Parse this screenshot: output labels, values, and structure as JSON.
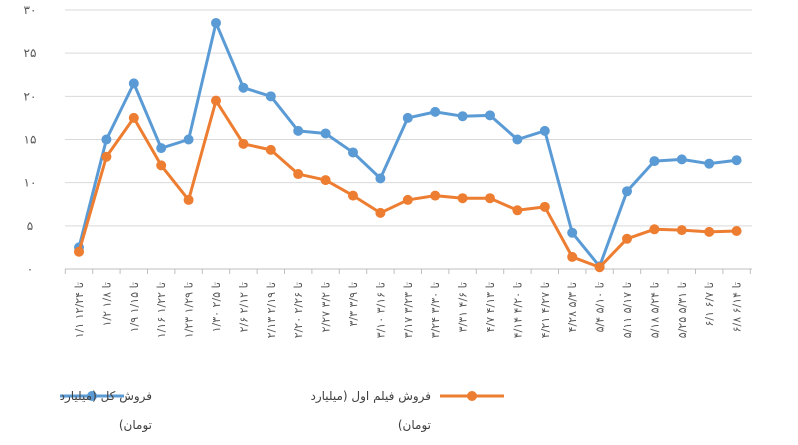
{
  "chart_data": {
    "type": "line",
    "title": "",
    "xlabel": "",
    "ylabel": "",
    "ylim": [
      0,
      30
    ],
    "y_ticks": [
      "۰",
      "۵",
      "۱۰",
      "۱۵",
      "۲۰",
      "۲۵",
      "۳۰"
    ],
    "grid": true,
    "legend_position": "bottom",
    "categories": [
      "۱/۱ تا ۱۲/۲۴",
      "۱/۲ تا ۱/۸",
      "۱/۹ تا ۱/۱۵",
      "۱/۱۶ تا ۱/۲۲",
      "۱/۲۳ تا ۱/۲۹",
      "۱/۳۰ تا ۲/۵",
      "۲/۶ تا ۲/۱۲",
      "۲/۱۳ تا ۲/۱۹",
      "۲/۲۰ تا ۲/۲۶",
      "۲/۲۷ تا ۳/۲",
      "۳/۳ تا ۳/۹",
      "۳/۱۰ تا ۳/۱۶",
      "۳/۱۷ تا ۳/۲۳",
      "۳/۲۴ تا ۳/۳۰",
      "۳/۳۱ تا ۴/۶",
      "۴/۷ تا ۴/۱۳",
      "۴/۱۴ تا ۴/۲۰",
      "۴/۲۱ تا ۴/۲۷",
      "۴/۲۸ تا ۵/۳",
      "۵/۴ تا ۵/۱۰",
      "۵/۱۱ تا ۵/۱۷",
      "۵/۱۸ تا ۵/۲۴",
      "۵/۲۵ تا ۵/۳۱",
      "۶/۱ تا ۶/۷",
      "۶/۸ تا ۶/۱۴"
    ],
    "series": [
      {
        "name": "فروش کل (میلیارد تومان)",
        "color": "#5B9BD5",
        "values": [
          2.5,
          15,
          21.5,
          14,
          15,
          28.5,
          21,
          20,
          16,
          15.7,
          13.5,
          10.5,
          17.5,
          18.2,
          17.7,
          17.8,
          15,
          16,
          4.2,
          0.3,
          9,
          12.5,
          12.7,
          12.2,
          12.6
        ]
      },
      {
        "name": "فروش فیلم اول (میلیارد تومان)",
        "color": "#ED7D31",
        "values": [
          2,
          13,
          17.5,
          12,
          8,
          19.5,
          14.5,
          13.8,
          11,
          10.3,
          8.5,
          6.5,
          8,
          8.5,
          8.2,
          8.2,
          6.8,
          7.2,
          1.4,
          0.2,
          3.5,
          4.6,
          4.5,
          4.3,
          4.4
        ]
      }
    ]
  }
}
